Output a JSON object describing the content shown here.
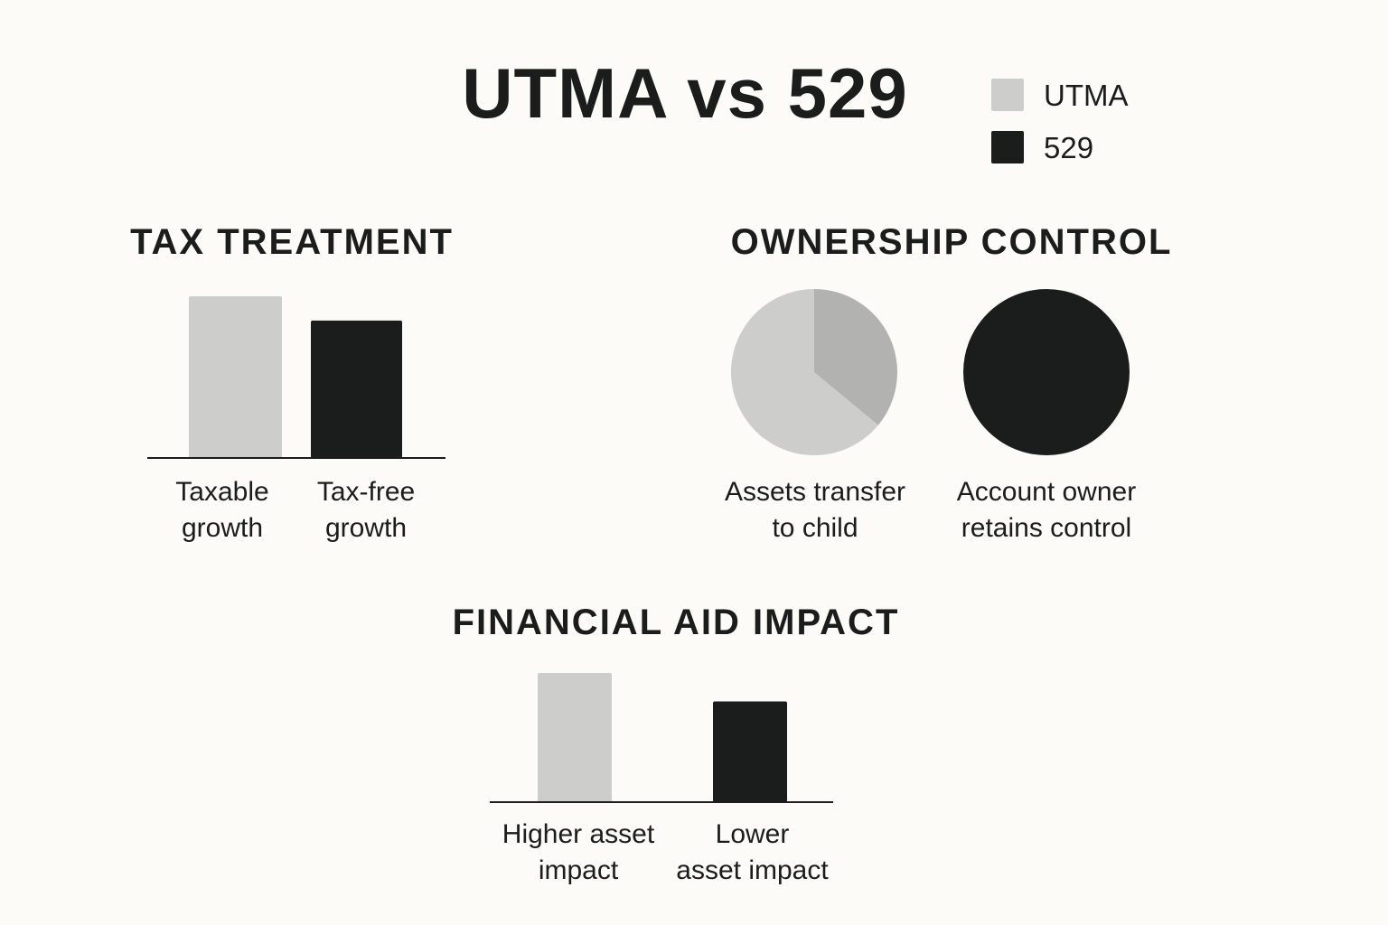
{
  "title": "UTMA vs 529",
  "legend": [
    {
      "label": "UTMA",
      "color": "#cdcdcb"
    },
    {
      "label": "529",
      "color": "#1b1d1c"
    }
  ],
  "colors": {
    "utma": "#cdcdcb",
    "utma_slice_dark": "#b2b2b0",
    "plan529": "#1b1d1c",
    "background": "#fcfbf7",
    "axis": "#1b1d1c"
  },
  "chart_data": [
    {
      "id": "tax-treatment",
      "type": "bar",
      "title": "TAX TREATMENT",
      "categories": [
        "Taxable\ngrowth",
        "Tax-free\ngrowth"
      ],
      "values": [
        100,
        85
      ],
      "ylim": [
        0,
        100
      ],
      "series": [
        "UTMA",
        "529"
      ],
      "grid": false
    },
    {
      "id": "ownership-control",
      "type": "pie",
      "title": "OWNERSHIP CONTROL",
      "pies": [
        {
          "label": "Assets transfer\nto child",
          "series": "UTMA",
          "slices": [
            {
              "value": 64,
              "color": "#cdcdcb"
            },
            {
              "value": 36,
              "color": "#b2b2b0"
            }
          ]
        },
        {
          "label": "Account owner\nretains control",
          "series": "529",
          "slices": [
            {
              "value": 100,
              "color": "#1b1d1c"
            }
          ]
        }
      ]
    },
    {
      "id": "financial-aid",
      "type": "bar",
      "title": "FINANCIAL AID IMPACT",
      "categories": [
        "Higher asset\nimpact",
        "Lower\nasset impact"
      ],
      "values": [
        100,
        78
      ],
      "ylim": [
        0,
        100
      ],
      "series": [
        "UTMA",
        "529"
      ],
      "grid": false
    }
  ]
}
